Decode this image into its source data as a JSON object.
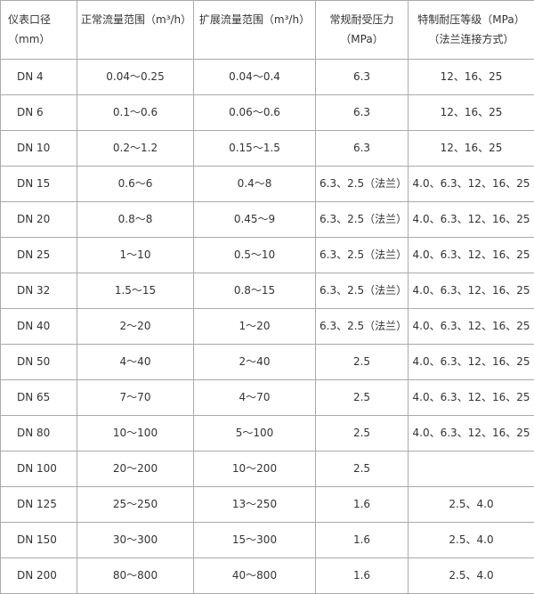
{
  "headers": [
    "仪表口径（mm）",
    "正常流量范围（m³/h）",
    "扩展流量范围（m³/h）",
    "常规耐受压力（MPa）",
    "特制耐压等级（MPa）（法兰连接方式）"
  ],
  "rows": [
    [
      "DN 4",
      "0.04～0.25",
      "0.04～0.4",
      "6.3",
      "12、16、25"
    ],
    [
      "DN 6",
      "0.1～0.6",
      "0.06～0.6",
      "6.3",
      "12、16、25"
    ],
    [
      "DN 10",
      "0.2～1.2",
      "0.15～1.5",
      "6.3",
      "12、16、25"
    ],
    [
      "DN 15",
      "0.6～6",
      "0.4～8",
      "6.3、2.5（法兰）",
      "4.0、6.3、12、16、25"
    ],
    [
      "DN 20",
      "0.8～8",
      "0.45～9",
      "6.3、2.5（法兰）",
      "4.0、6.3、12、16、25"
    ],
    [
      "DN 25",
      "1～10",
      "0.5～10",
      "6.3、2.5（法兰）",
      "4.0、6.3、12、16、25"
    ],
    [
      "DN 32",
      "1.5～15",
      "0.8～15",
      "6.3、2.5（法兰）",
      "4.0、6.3、12、16、25"
    ],
    [
      "DN 40",
      "2～20",
      "1～20",
      "6.3、2.5（法兰）",
      "4.0、6.3、12、16、25"
    ],
    [
      "DN 50",
      "4～40",
      "2～40",
      "2.5",
      "4.0、6.3、12、16、25"
    ],
    [
      "DN 65",
      "7～70",
      "4～70",
      "2.5",
      "4.0、6.3、12、16、25"
    ],
    [
      "DN 80",
      "10～100",
      "5～100",
      "2.5",
      "4.0、6.3、12、16、25"
    ],
    [
      "DN 100",
      "20～200",
      "10～200",
      "2.5",
      ""
    ],
    [
      "DN 125",
      "25～250",
      "13～250",
      "1.6",
      "2.5、4.0"
    ],
    [
      "DN 150",
      "30～300",
      "15～300",
      "1.6",
      "2.5、4.0"
    ],
    [
      "DN 200",
      "80～800",
      "40～800",
      "1.6",
      "2.5、4.0"
    ]
  ]
}
